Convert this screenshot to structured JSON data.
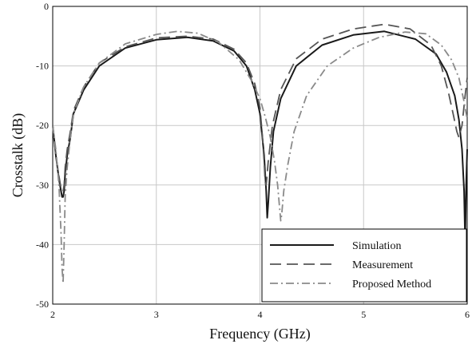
{
  "chart_data": {
    "type": "line",
    "xlabel": "Frequency (GHz)",
    "ylabel": "Crosstalk (dB)",
    "xlim": [
      2,
      6
    ],
    "ylim": [
      -50,
      0
    ],
    "xticks": [
      "2",
      "3",
      "4",
      "5",
      "6"
    ],
    "yticks": [
      "0",
      "-10",
      "-20",
      "-30",
      "-40",
      "-50"
    ],
    "grid": true,
    "legend_position": "bottom-right",
    "series": [
      {
        "name": "Simulation",
        "style": "solid",
        "color": "#1a1a1a",
        "x": [
          2.0,
          2.03,
          2.06,
          2.08,
          2.09,
          2.1,
          2.11,
          2.12,
          2.14,
          2.17,
          2.2,
          2.3,
          2.45,
          2.7,
          3.0,
          3.3,
          3.55,
          3.75,
          3.87,
          3.95,
          4.0,
          4.04,
          4.06,
          4.07,
          4.08,
          4.1,
          4.13,
          4.2,
          4.35,
          4.6,
          4.9,
          5.2,
          5.5,
          5.7,
          5.8,
          5.88,
          5.92,
          5.95,
          5.97,
          5.98,
          5.99,
          6.0
        ],
        "y": [
          -20,
          -25,
          -29,
          -31,
          -32,
          -32,
          -31,
          -28,
          -25,
          -22,
          -18,
          -14,
          -10,
          -7,
          -5.6,
          -5.2,
          -5.8,
          -7.5,
          -10,
          -14,
          -18,
          -25,
          -31,
          -35.5,
          -33,
          -27,
          -21,
          -15.5,
          -10,
          -6.5,
          -4.8,
          -4.2,
          -5.5,
          -8,
          -11,
          -15,
          -19,
          -24,
          -31,
          -39.5,
          -30,
          -24
        ]
      },
      {
        "name": "Measurement",
        "style": "dashed",
        "color": "#555555",
        "x": [
          2.0,
          2.03,
          2.06,
          2.08,
          2.09,
          2.1,
          2.11,
          2.12,
          2.14,
          2.17,
          2.2,
          2.3,
          2.45,
          2.7,
          3.0,
          3.3,
          3.55,
          3.75,
          3.87,
          3.95,
          4.0,
          4.02,
          4.04,
          4.05,
          4.06,
          4.08,
          4.12,
          4.2,
          4.35,
          4.6,
          4.9,
          5.2,
          5.45,
          5.65,
          5.75,
          5.82,
          5.87,
          5.9,
          5.92,
          5.95,
          5.98,
          6.0
        ],
        "y": [
          -20,
          -25,
          -28.5,
          -30.5,
          -31,
          -31,
          -30,
          -27,
          -24,
          -21,
          -17.5,
          -13.5,
          -9.5,
          -6.8,
          -5.3,
          -5.0,
          -5.5,
          -7.2,
          -9.5,
          -13,
          -17,
          -21,
          -26,
          -29.5,
          -30,
          -26,
          -20,
          -14,
          -8.8,
          -5.5,
          -3.8,
          -3.0,
          -3.8,
          -6.5,
          -10,
          -14.5,
          -18.5,
          -21,
          -22,
          -20,
          -15,
          -12
        ]
      },
      {
        "name": "Proposed Method",
        "style": "dashdot",
        "color": "#8a8a8a",
        "x": [
          2.0,
          2.03,
          2.06,
          2.08,
          2.09,
          2.1,
          2.11,
          2.12,
          2.14,
          2.17,
          2.2,
          2.3,
          2.45,
          2.7,
          3.0,
          3.2,
          3.4,
          3.6,
          3.8,
          3.92,
          4.0,
          4.05,
          4.1,
          4.14,
          4.17,
          4.19,
          4.2,
          4.21,
          4.23,
          4.27,
          4.33,
          4.45,
          4.65,
          4.9,
          5.15,
          5.4,
          5.6,
          5.75,
          5.85,
          5.92,
          5.97,
          6.0
        ],
        "y": [
          -20,
          -24,
          -30,
          -38,
          -44,
          -46.5,
          -40,
          -32,
          -27,
          -22,
          -18,
          -13.5,
          -9.5,
          -6.3,
          -4.7,
          -4.2,
          -4.5,
          -6.0,
          -9.0,
          -12.5,
          -15.5,
          -18.5,
          -22,
          -26,
          -30,
          -34,
          -36,
          -35,
          -31,
          -26.5,
          -21,
          -15,
          -10,
          -7,
          -5.2,
          -4.3,
          -4.6,
          -6.5,
          -9,
          -12,
          -16,
          -19
        ]
      }
    ]
  }
}
